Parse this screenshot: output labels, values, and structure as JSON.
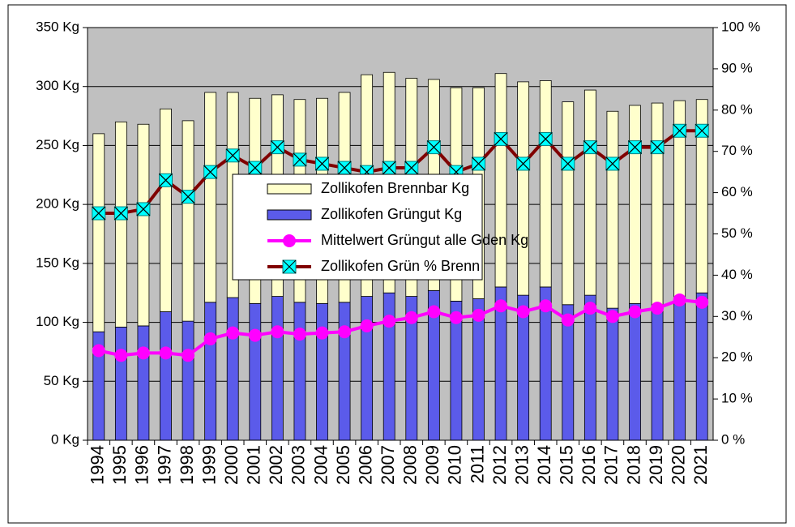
{
  "chart_data": {
    "type": "bar",
    "categories": [
      "1994",
      "1995",
      "1996",
      "1997",
      "1998",
      "1999",
      "2000",
      "2001",
      "2002",
      "2003",
      "2004",
      "2005",
      "2006",
      "2007",
      "2008",
      "2009",
      "2010",
      "2011",
      "2012",
      "2013",
      "2014",
      "2015",
      "2016",
      "2017",
      "2018",
      "2019",
      "2020",
      "2021"
    ],
    "series": [
      {
        "name": "Zollikofen Grüngut Kg",
        "type": "bar",
        "color": "#5b5bea",
        "values": [
          92,
          96,
          97,
          109,
          101,
          117,
          121,
          116,
          122,
          117,
          116,
          117,
          122,
          125,
          122,
          127,
          118,
          120,
          130,
          123,
          130,
          115,
          123,
          112,
          116,
          113,
          120,
          125
        ]
      },
      {
        "name": "Zollikofen Brennbar Kg",
        "type": "bar",
        "color": "#ffffcc",
        "values": [
          168,
          174,
          171,
          172,
          170,
          178,
          174,
          174,
          171,
          172,
          174,
          178,
          188,
          187,
          185,
          179,
          181,
          179,
          181,
          181,
          175,
          172,
          174,
          167,
          168,
          173,
          168,
          164
        ]
      },
      {
        "name": "Mittelwert Grüngut alle Gden Kg",
        "type": "line",
        "color": "#ff00ff",
        "values": [
          76,
          72,
          74,
          74,
          72,
          86,
          91,
          89,
          92,
          90,
          91,
          92,
          97,
          101,
          104,
          109,
          104,
          106,
          114,
          109,
          114,
          102,
          112,
          105,
          109,
          112,
          119,
          117
        ]
      },
      {
        "name": "Zollikofen Grün % Brenn",
        "type": "line",
        "axis": "y2",
        "color": "#800000",
        "values": [
          55,
          55,
          56,
          63,
          59,
          65,
          69,
          66,
          71,
          68,
          67,
          66,
          65,
          66,
          66,
          71,
          65,
          67,
          73,
          67,
          73,
          67,
          71,
          67,
          71,
          71,
          75,
          75
        ]
      }
    ],
    "ylim": [
      0,
      350
    ],
    "yticks": [
      {
        "value": 0,
        "label": "0 Kg"
      },
      {
        "value": 50,
        "label": "50 Kg"
      },
      {
        "value": 100,
        "label": "100 Kg"
      },
      {
        "value": 150,
        "label": "150 Kg"
      },
      {
        "value": 200,
        "label": "200 Kg"
      },
      {
        "value": 250,
        "label": "250 Kg"
      },
      {
        "value": 300,
        "label": "300 Kg"
      },
      {
        "value": 350,
        "label": "350 Kg"
      }
    ],
    "y2lim": [
      0,
      100
    ],
    "y2ticks": [
      {
        "value": 0,
        "label": "0 %"
      },
      {
        "value": 10,
        "label": "10 %"
      },
      {
        "value": 20,
        "label": "20 %"
      },
      {
        "value": 30,
        "label": "30 %"
      },
      {
        "value": 40,
        "label": "40 %"
      },
      {
        "value": 50,
        "label": "50 %"
      },
      {
        "value": 60,
        "label": "60 %"
      },
      {
        "value": 70,
        "label": "70 %"
      },
      {
        "value": 80,
        "label": "80 %"
      },
      {
        "value": 90,
        "label": "90 %"
      },
      {
        "value": 100,
        "label": "100 %"
      }
    ],
    "grid": true
  }
}
